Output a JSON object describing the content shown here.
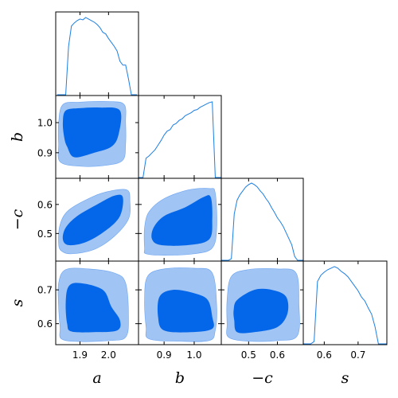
{
  "chart_data": {
    "type": "corner",
    "parameters": [
      {
        "key": "a",
        "label": "a",
        "range": [
          1.815,
          2.105
        ],
        "ticks": [
          {
            "v": 1.9,
            "t": "1.9"
          },
          {
            "v": 2.0,
            "t": "2.0"
          }
        ]
      },
      {
        "key": "b",
        "label": "b",
        "range": [
          0.815,
          1.09
        ],
        "ticks": [
          {
            "v": 0.9,
            "t": "0.9"
          },
          {
            "v": 1.0,
            "t": "1.0"
          }
        ]
      },
      {
        "key": "negc",
        "label": "−c",
        "range": [
          0.405,
          0.69
        ],
        "ticks": [
          {
            "v": 0.5,
            "t": "0.5"
          },
          {
            "v": 0.6,
            "t": "0.6"
          }
        ]
      },
      {
        "key": "s",
        "label": "s",
        "range": [
          0.538,
          0.785
        ],
        "ticks": [
          {
            "v": 0.6,
            "t": "0.6"
          },
          {
            "v": 0.7,
            "t": "0.7"
          }
        ]
      }
    ],
    "colors": {
      "inner": "#0466e8",
      "outer": "#a0c4f4",
      "line": "#1c7fe4"
    },
    "marginals": [
      {
        "param": "a",
        "x": [
          1.82,
          1.83,
          1.84,
          1.85,
          1.86,
          1.87,
          1.88,
          1.89,
          1.9,
          1.91,
          1.92,
          1.93,
          1.94,
          1.95,
          1.96,
          1.97,
          1.98,
          1.99,
          2.0,
          2.01,
          2.02,
          2.03,
          2.04,
          2.05,
          2.06,
          2.07,
          2.08,
          2.09,
          2.1
        ],
        "y": [
          0.0,
          0.0,
          0.0,
          0.0,
          0.62,
          0.88,
          0.92,
          0.95,
          0.97,
          0.96,
          0.99,
          0.97,
          0.95,
          0.93,
          0.9,
          0.86,
          0.8,
          0.78,
          0.72,
          0.67,
          0.62,
          0.56,
          0.43,
          0.38,
          0.38,
          0.2,
          0.0,
          0.0,
          0.0
        ]
      },
      {
        "param": "b",
        "x": [
          0.815,
          0.82,
          0.83,
          0.84,
          0.85,
          0.86,
          0.87,
          0.88,
          0.89,
          0.9,
          0.91,
          0.92,
          0.93,
          0.94,
          0.95,
          0.96,
          0.97,
          0.98,
          0.99,
          1.0,
          1.01,
          1.02,
          1.03,
          1.04,
          1.05,
          1.06,
          1.07,
          1.08,
          1.09
        ],
        "y": [
          0.0,
          0.0,
          0.0,
          0.25,
          0.28,
          0.32,
          0.36,
          0.42,
          0.48,
          0.55,
          0.6,
          0.62,
          0.68,
          0.7,
          0.74,
          0.76,
          0.8,
          0.82,
          0.84,
          0.87,
          0.88,
          0.91,
          0.93,
          0.95,
          0.97,
          0.98,
          0.0,
          0.0,
          0.0
        ]
      },
      {
        "param": "negc",
        "x": [
          0.405,
          0.42,
          0.43,
          0.44,
          0.45,
          0.46,
          0.47,
          0.48,
          0.49,
          0.5,
          0.51,
          0.52,
          0.53,
          0.54,
          0.55,
          0.56,
          0.57,
          0.58,
          0.59,
          0.6,
          0.61,
          0.62,
          0.63,
          0.64,
          0.65,
          0.66,
          0.67,
          0.68,
          0.69
        ],
        "y": [
          0.0,
          0.0,
          0.0,
          0.02,
          0.6,
          0.78,
          0.85,
          0.9,
          0.95,
          0.98,
          1.0,
          0.98,
          0.95,
          0.9,
          0.86,
          0.8,
          0.75,
          0.68,
          0.62,
          0.55,
          0.5,
          0.44,
          0.36,
          0.28,
          0.2,
          0.05,
          0.0,
          0.0,
          0.0
        ]
      },
      {
        "param": "s",
        "x": [
          0.538,
          0.55,
          0.56,
          0.57,
          0.58,
          0.59,
          0.6,
          0.61,
          0.62,
          0.63,
          0.64,
          0.65,
          0.66,
          0.67,
          0.68,
          0.69,
          0.7,
          0.71,
          0.72,
          0.73,
          0.74,
          0.75,
          0.76,
          0.77,
          0.785
        ],
        "y": [
          0.0,
          0.0,
          0.0,
          0.03,
          0.8,
          0.88,
          0.92,
          0.95,
          0.97,
          0.99,
          0.97,
          0.93,
          0.9,
          0.86,
          0.8,
          0.74,
          0.68,
          0.6,
          0.55,
          0.46,
          0.38,
          0.22,
          0.0,
          0.0,
          0.0
        ]
      }
    ],
    "contours": [
      {
        "x": "a",
        "y": "b",
        "outer": [
          [
            1.83,
            0.87
          ],
          [
            1.9,
            0.855
          ],
          [
            1.99,
            0.858
          ],
          [
            2.05,
            0.875
          ],
          [
            2.06,
            0.93
          ],
          [
            2.06,
            1.0
          ],
          [
            2.055,
            1.06
          ],
          [
            2.0,
            1.07
          ],
          [
            1.9,
            1.068
          ],
          [
            1.84,
            1.06
          ],
          [
            1.825,
            1.0
          ],
          [
            1.825,
            0.93
          ]
        ],
        "inner": [
          [
            1.855,
            0.92
          ],
          [
            1.88,
            0.885
          ],
          [
            1.95,
            0.9
          ],
          [
            2.01,
            0.92
          ],
          [
            2.035,
            0.96
          ],
          [
            2.04,
            1.04
          ],
          [
            1.97,
            1.05
          ],
          [
            1.9,
            1.048
          ],
          [
            1.85,
            1.04
          ],
          [
            1.84,
            1.0
          ],
          [
            1.845,
            0.95
          ]
        ]
      },
      {
        "x": "a",
        "y": "negc",
        "outer": [
          [
            1.825,
            0.465
          ],
          [
            1.835,
            0.44
          ],
          [
            1.87,
            0.43
          ],
          [
            1.95,
            0.445
          ],
          [
            2.02,
            0.49
          ],
          [
            2.07,
            0.55
          ],
          [
            2.075,
            0.61
          ],
          [
            2.065,
            0.65
          ],
          [
            2.0,
            0.645
          ],
          [
            1.94,
            0.625
          ],
          [
            1.86,
            0.58
          ],
          [
            1.83,
            0.53
          ]
        ],
        "inner": [
          [
            1.84,
            0.48
          ],
          [
            1.86,
            0.46
          ],
          [
            1.92,
            0.47
          ],
          [
            1.99,
            0.51
          ],
          [
            2.04,
            0.56
          ],
          [
            2.05,
            0.625
          ],
          [
            2.02,
            0.63
          ],
          [
            1.96,
            0.6
          ],
          [
            1.89,
            0.56
          ],
          [
            1.85,
            0.52
          ]
        ]
      },
      {
        "x": "b",
        "y": "negc",
        "outer": [
          [
            0.835,
            0.45
          ],
          [
            0.84,
            0.43
          ],
          [
            0.9,
            0.425
          ],
          [
            1.0,
            0.43
          ],
          [
            1.06,
            0.45
          ],
          [
            1.075,
            0.52
          ],
          [
            1.07,
            0.64
          ],
          [
            1.05,
            0.655
          ],
          [
            0.98,
            0.65
          ],
          [
            0.9,
            0.62
          ],
          [
            0.85,
            0.575
          ],
          [
            0.835,
            0.52
          ]
        ],
        "inner": [
          [
            0.86,
            0.48
          ],
          [
            0.89,
            0.46
          ],
          [
            0.98,
            0.46
          ],
          [
            1.05,
            0.48
          ],
          [
            1.06,
            0.55
          ],
          [
            1.055,
            0.625
          ],
          [
            1.03,
            0.625
          ],
          [
            0.97,
            0.59
          ],
          [
            0.9,
            0.56
          ],
          [
            0.865,
            0.52
          ]
        ]
      },
      {
        "x": "a",
        "y": "s",
        "outer": [
          [
            1.83,
            0.59
          ],
          [
            1.835,
            0.555
          ],
          [
            1.9,
            0.547
          ],
          [
            2.0,
            0.55
          ],
          [
            2.06,
            0.56
          ],
          [
            2.07,
            0.62
          ],
          [
            2.06,
            0.72
          ],
          [
            2.02,
            0.75
          ],
          [
            1.93,
            0.762
          ],
          [
            1.85,
            0.76
          ],
          [
            1.825,
            0.72
          ],
          [
            1.825,
            0.65
          ]
        ],
        "inner": [
          [
            1.855,
            0.6
          ],
          [
            1.87,
            0.577
          ],
          [
            1.95,
            0.575
          ],
          [
            2.03,
            0.58
          ],
          [
            2.04,
            0.61
          ],
          [
            2.01,
            0.65
          ],
          [
            1.98,
            0.7
          ],
          [
            1.9,
            0.72
          ],
          [
            1.86,
            0.71
          ],
          [
            1.85,
            0.66
          ]
        ]
      },
      {
        "x": "b",
        "y": "s",
        "outer": [
          [
            0.84,
            0.59
          ],
          [
            0.85,
            0.555
          ],
          [
            0.95,
            0.548
          ],
          [
            1.05,
            0.55
          ],
          [
            1.07,
            0.58
          ],
          [
            1.075,
            0.65
          ],
          [
            1.06,
            0.75
          ],
          [
            1.0,
            0.764
          ],
          [
            0.9,
            0.762
          ],
          [
            0.845,
            0.74
          ],
          [
            0.835,
            0.67
          ]
        ],
        "inner": [
          [
            0.88,
            0.62
          ],
          [
            0.9,
            0.58
          ],
          [
            0.99,
            0.575
          ],
          [
            1.06,
            0.585
          ],
          [
            1.06,
            0.62
          ],
          [
            1.045,
            0.67
          ],
          [
            1.0,
            0.69
          ],
          [
            0.93,
            0.7
          ],
          [
            0.885,
            0.68
          ]
        ]
      },
      {
        "x": "negc",
        "y": "s",
        "outer": [
          [
            0.425,
            0.6
          ],
          [
            0.43,
            0.56
          ],
          [
            0.5,
            0.548
          ],
          [
            0.6,
            0.55
          ],
          [
            0.67,
            0.565
          ],
          [
            0.675,
            0.66
          ],
          [
            0.665,
            0.75
          ],
          [
            0.6,
            0.762
          ],
          [
            0.5,
            0.76
          ],
          [
            0.44,
            0.74
          ],
          [
            0.425,
            0.67
          ]
        ],
        "inner": [
          [
            0.45,
            0.61
          ],
          [
            0.46,
            0.575
          ],
          [
            0.52,
            0.575
          ],
          [
            0.6,
            0.59
          ],
          [
            0.635,
            0.63
          ],
          [
            0.63,
            0.68
          ],
          [
            0.58,
            0.7
          ],
          [
            0.52,
            0.7
          ],
          [
            0.46,
            0.67
          ],
          [
            0.448,
            0.64
          ]
        ]
      }
    ]
  }
}
